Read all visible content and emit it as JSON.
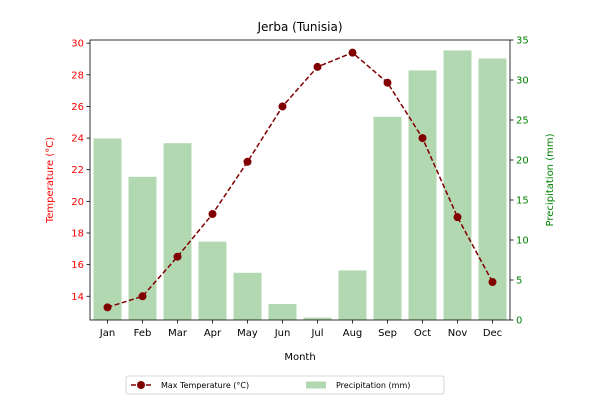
{
  "chart_data": {
    "type": "bar+line",
    "title": "Jerba (Tunisia)",
    "xlabel": "Month",
    "categories": [
      "Jan",
      "Feb",
      "Mar",
      "Apr",
      "May",
      "Jun",
      "Jul",
      "Aug",
      "Sep",
      "Oct",
      "Nov",
      "Dec"
    ],
    "left_axis": {
      "label": "Temperature (°C)",
      "color": "#ff0000",
      "ylim": [
        12.5,
        30.2
      ],
      "ticks": [
        14,
        16,
        18,
        20,
        22,
        24,
        26,
        28,
        30
      ]
    },
    "right_axis": {
      "label": "Precipitation (mm)",
      "color": "#008000",
      "ylim": [
        0,
        35
      ],
      "ticks": [
        0,
        5,
        10,
        15,
        20,
        25,
        30,
        35
      ]
    },
    "series": [
      {
        "name": "Max Temperature (°C)",
        "kind": "line",
        "axis": "left",
        "color": "#800000",
        "values": [
          13.3,
          14.0,
          16.5,
          19.2,
          22.5,
          26.0,
          28.5,
          29.4,
          27.5,
          24.0,
          19.0,
          14.9
        ]
      },
      {
        "name": "Precipitation (mm)",
        "kind": "bar",
        "axis": "right",
        "color": "#b2d8b2",
        "values": [
          22.7,
          17.9,
          22.1,
          9.8,
          5.9,
          2.0,
          0.3,
          6.2,
          25.4,
          31.2,
          33.7,
          32.7
        ]
      }
    ],
    "legend": {
      "placement": "bottom-center",
      "columns": 2
    }
  }
}
